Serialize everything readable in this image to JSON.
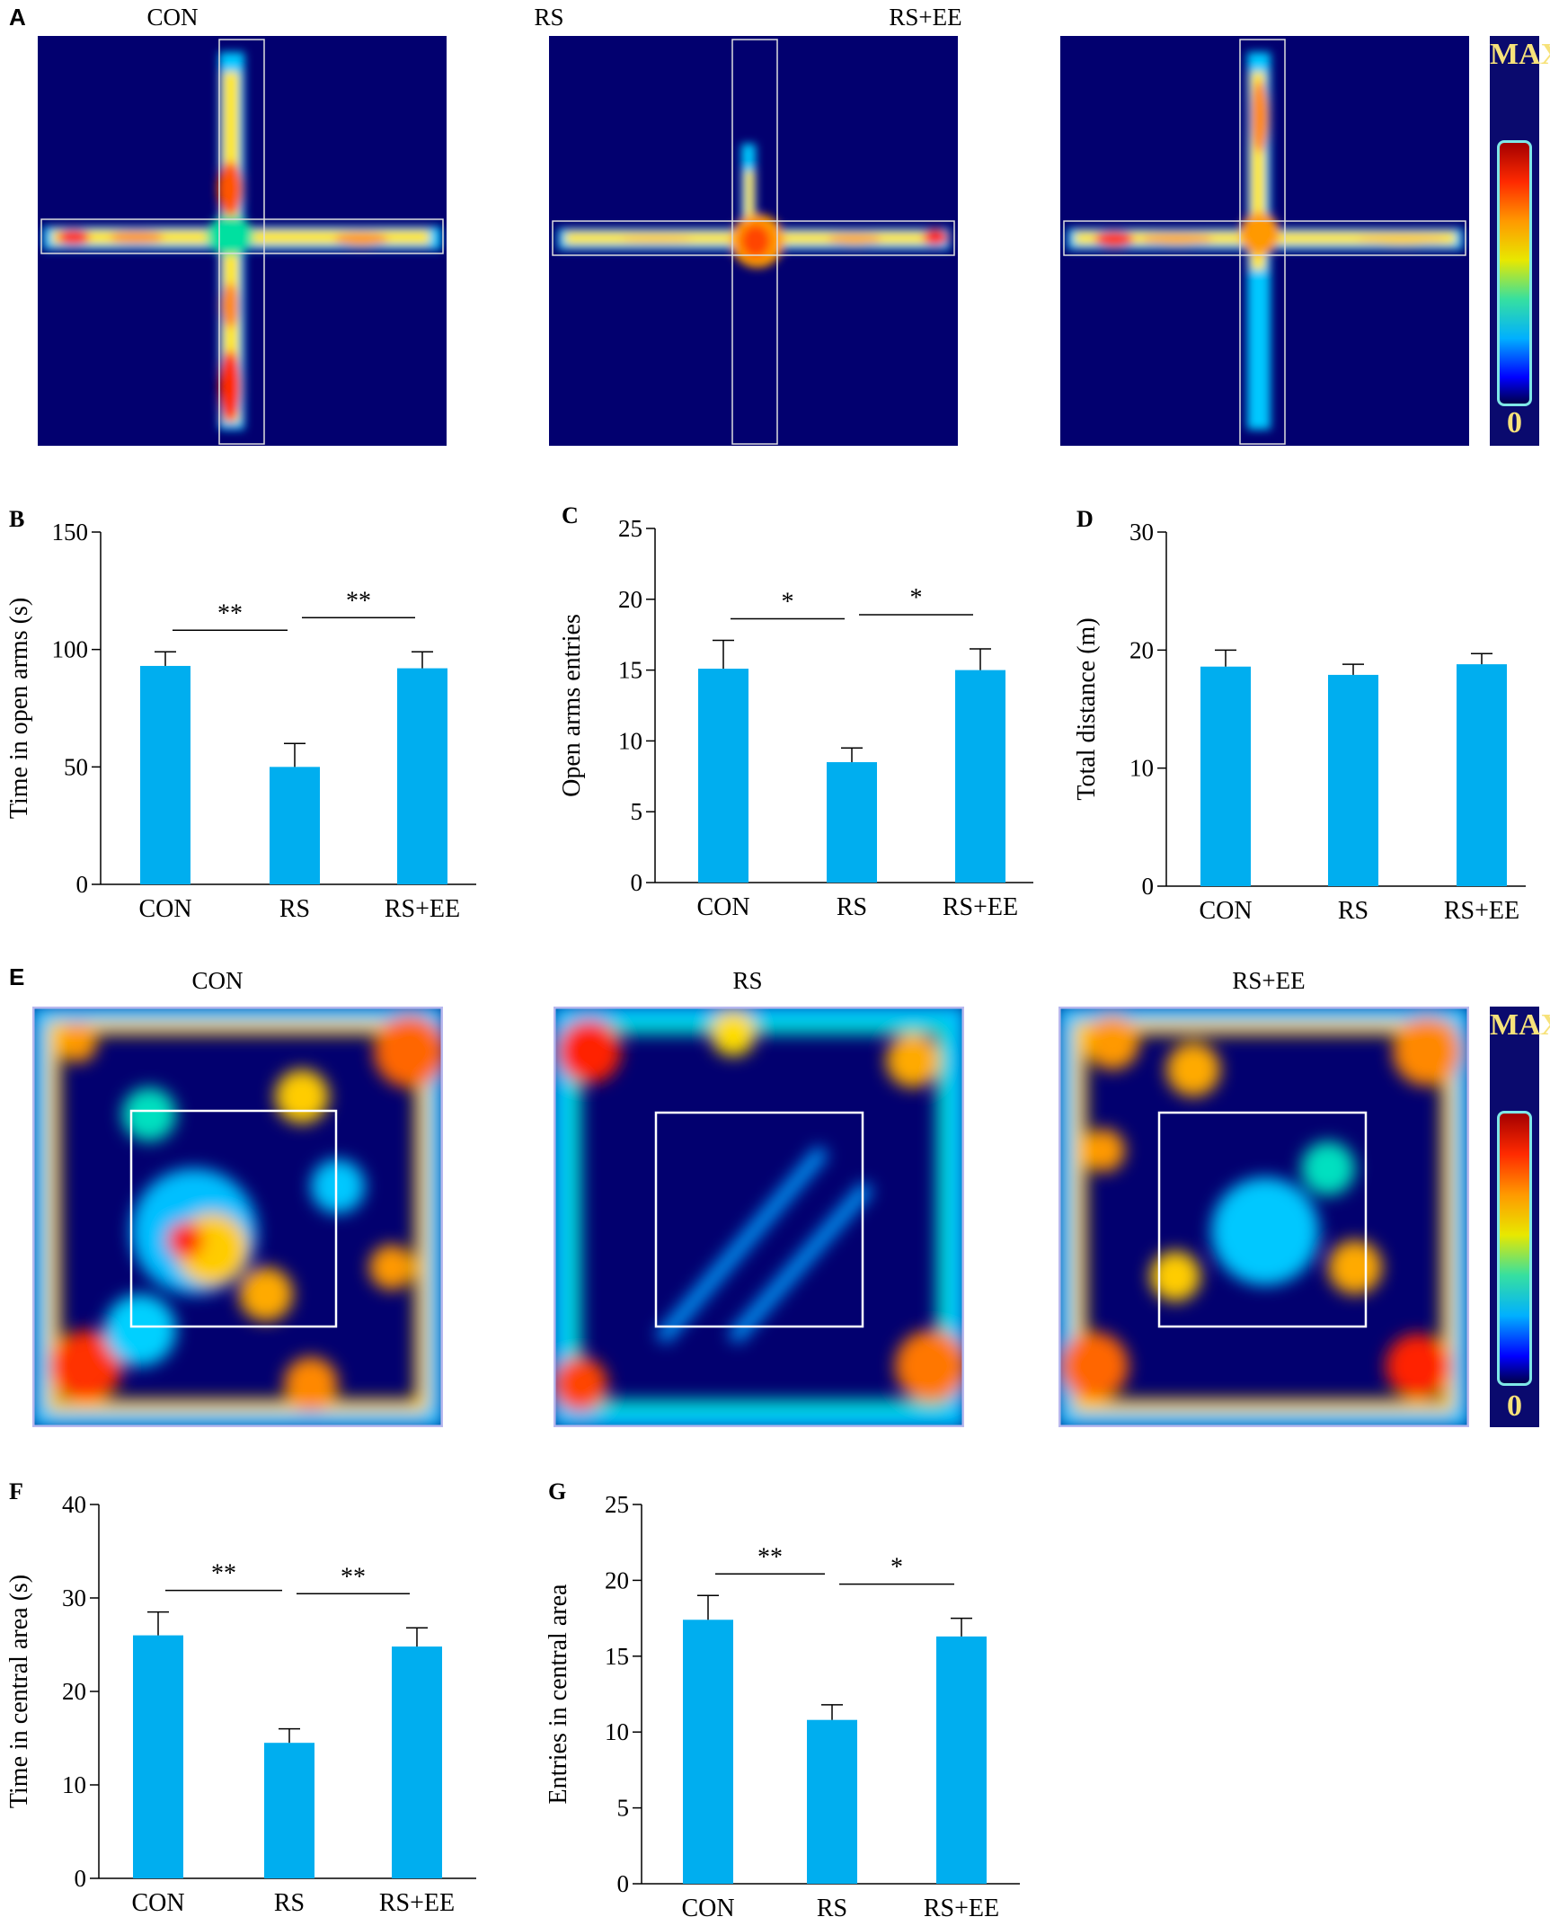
{
  "colors": {
    "bar": "#00AEEF",
    "heat_bg": "#02006F"
  },
  "panels": {
    "A": {
      "label": "A",
      "titles": [
        "CON",
        "RS",
        "RS+EE"
      ]
    },
    "E": {
      "label": "E",
      "titles": [
        "CON",
        "RS",
        "RS+EE"
      ]
    }
  },
  "colorbar": {
    "max_label": "MAX",
    "min_label": "0"
  },
  "chart_data": [
    {
      "panel": "B",
      "type": "bar",
      "categories": [
        "CON",
        "RS",
        "RS+EE"
      ],
      "values": [
        93,
        50,
        92
      ],
      "errors": [
        6,
        10,
        7
      ],
      "ylabel": "Time in open arms (s)",
      "ylim": [
        0,
        150
      ],
      "yticks": [
        "0",
        "50",
        "100",
        "150"
      ],
      "significance": [
        {
          "from": 0,
          "to": 1,
          "label": "**"
        },
        {
          "from": 1,
          "to": 2,
          "label": "**"
        }
      ]
    },
    {
      "panel": "C",
      "type": "bar",
      "categories": [
        "CON",
        "RS",
        "RS+EE"
      ],
      "values": [
        15.1,
        8.5,
        15.0
      ],
      "errors": [
        2.0,
        1.0,
        1.5
      ],
      "ylabel": "Open arms entries",
      "ylim": [
        0,
        25
      ],
      "yticks": [
        "0",
        "5",
        "10",
        "15",
        "20",
        "25"
      ],
      "significance": [
        {
          "from": 0,
          "to": 1,
          "label": "*"
        },
        {
          "from": 1,
          "to": 2,
          "label": "*"
        }
      ]
    },
    {
      "panel": "D",
      "type": "bar",
      "categories": [
        "CON",
        "RS",
        "RS+EE"
      ],
      "values": [
        18.6,
        17.9,
        18.8
      ],
      "errors": [
        1.4,
        0.9,
        0.9
      ],
      "ylabel": "Total distance (m)",
      "ylim": [
        0,
        30
      ],
      "yticks": [
        "0",
        "10",
        "20",
        "30"
      ],
      "significance": []
    },
    {
      "panel": "F",
      "type": "bar",
      "categories": [
        "CON",
        "RS",
        "RS+EE"
      ],
      "values": [
        26.0,
        14.5,
        24.8
      ],
      "errors": [
        2.5,
        1.5,
        2.0
      ],
      "ylabel": "Time in central area (s)",
      "ylim": [
        0,
        40
      ],
      "yticks": [
        "0",
        "10",
        "20",
        "30",
        "40"
      ],
      "significance": [
        {
          "from": 0,
          "to": 1,
          "label": "**"
        },
        {
          "from": 1,
          "to": 2,
          "label": "**"
        }
      ]
    },
    {
      "panel": "G",
      "type": "bar",
      "categories": [
        "CON",
        "RS",
        "RS+EE"
      ],
      "values": [
        17.4,
        10.8,
        16.3
      ],
      "errors": [
        1.6,
        1.0,
        1.2
      ],
      "ylabel": "Entries in central area",
      "ylim": [
        0,
        25
      ],
      "yticks": [
        "0",
        "5",
        "10",
        "15",
        "20",
        "25"
      ],
      "significance": [
        {
          "from": 0,
          "to": 1,
          "label": "**"
        },
        {
          "from": 1,
          "to": 2,
          "label": "*"
        }
      ]
    }
  ]
}
